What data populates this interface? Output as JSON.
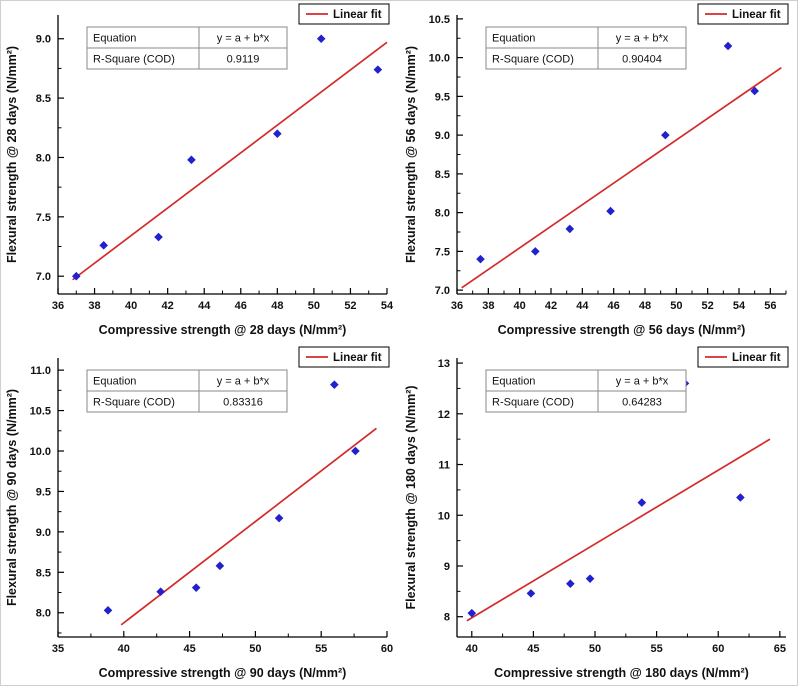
{
  "page": {
    "background": "#ffffff"
  },
  "chart_data": [
    {
      "type": "scatter",
      "title": "",
      "xlabel": "Compressive strength @ 28 days (N/mm²)",
      "ylabel": "Flexural strength @ 28 days (N/mm²)",
      "xlim": [
        36,
        54
      ],
      "ylim": [
        6.85,
        9.2
      ],
      "xtick_values": [
        36,
        38,
        40,
        42,
        44,
        46,
        48,
        50,
        52,
        54
      ],
      "xtick_labels": [
        "36",
        "38",
        "40",
        "42",
        "44",
        "46",
        "48",
        "50",
        "52",
        "54"
      ],
      "ytick_values": [
        7.0,
        7.5,
        8.0,
        8.5,
        9.0
      ],
      "ytick_labels": [
        "7.0",
        "7.5",
        "8.0",
        "8.5",
        "9.0"
      ],
      "points": [
        [
          37,
          7.0
        ],
        [
          38.5,
          7.26
        ],
        [
          41.5,
          7.33
        ],
        [
          43.3,
          7.98
        ],
        [
          48,
          8.2
        ],
        [
          50.4,
          9.0
        ],
        [
          53.5,
          8.74
        ]
      ],
      "fit_line": [
        [
          36.8,
          6.97
        ],
        [
          54.0,
          8.97
        ]
      ],
      "legend": "Linear fit",
      "legend_position": "top-right",
      "grid": false,
      "table": {
        "rows": [
          [
            "Equation",
            "y = a + b*x"
          ],
          [
            "R-Square (COD)",
            "0.9119"
          ]
        ]
      },
      "colors": {
        "marker": "#2121cd",
        "line": "#d42a2a"
      }
    },
    {
      "type": "scatter",
      "title": "",
      "xlabel": "Compressive strength @ 56 days (N/mm²)",
      "ylabel": "Flexural strength @ 56 days (N/mm²)",
      "xlim": [
        36,
        57
      ],
      "ylim": [
        6.95,
        10.55
      ],
      "xtick_values": [
        36,
        38,
        40,
        42,
        44,
        46,
        48,
        50,
        52,
        54,
        56
      ],
      "xtick_labels": [
        "36",
        "38",
        "40",
        "42",
        "44",
        "46",
        "48",
        "50",
        "52",
        "54",
        "56"
      ],
      "ytick_values": [
        7.0,
        7.5,
        8.0,
        8.5,
        9.0,
        9.5,
        10.0,
        10.5
      ],
      "ytick_labels": [
        "7.0",
        "7.5",
        "8.0",
        "8.5",
        "9.0",
        "9.5",
        "10.0",
        "10.5"
      ],
      "points": [
        [
          37.5,
          7.4
        ],
        [
          41,
          7.5
        ],
        [
          43.2,
          7.79
        ],
        [
          45.8,
          8.02
        ],
        [
          49.3,
          9.0
        ],
        [
          53.3,
          10.15
        ],
        [
          55,
          9.57
        ]
      ],
      "fit_line": [
        [
          36.3,
          7.03
        ],
        [
          56.7,
          9.87
        ]
      ],
      "legend": "Linear fit",
      "legend_position": "top-right",
      "grid": false,
      "table": {
        "rows": [
          [
            "Equation",
            "y = a + b*x"
          ],
          [
            "R-Square (COD)",
            "0.90404"
          ]
        ]
      },
      "colors": {
        "marker": "#2121cd",
        "line": "#d42a2a"
      }
    },
    {
      "type": "scatter",
      "title": "",
      "xlabel": "Compressive strength @ 90 days (N/mm²)",
      "ylabel": "Flexural strength @ 90 days (N/mm²)",
      "xlim": [
        35,
        60
      ],
      "ylim": [
        7.7,
        11.15
      ],
      "xtick_values": [
        35,
        40,
        45,
        50,
        55,
        60
      ],
      "xtick_labels": [
        "35",
        "40",
        "45",
        "50",
        "55",
        "60"
      ],
      "ytick_values": [
        8.0,
        8.5,
        9.0,
        9.5,
        10.0,
        10.5,
        11.0
      ],
      "ytick_labels": [
        "8.0",
        "8.5",
        "9.0",
        "9.5",
        "10.0",
        "10.5",
        "11.0"
      ],
      "points": [
        [
          38.8,
          8.03
        ],
        [
          42.8,
          8.26
        ],
        [
          45.5,
          8.31
        ],
        [
          47.3,
          8.58
        ],
        [
          51.8,
          9.17
        ],
        [
          56,
          10.82
        ],
        [
          57.6,
          10.0
        ]
      ],
      "fit_line": [
        [
          39.8,
          7.85
        ],
        [
          59.2,
          10.28
        ]
      ],
      "legend": "Linear fit",
      "legend_position": "top-right",
      "grid": false,
      "table": {
        "rows": [
          [
            "Equation",
            "y = a + b*x"
          ],
          [
            "R-Square (COD)",
            "0.83316"
          ]
        ]
      },
      "colors": {
        "marker": "#2121cd",
        "line": "#d42a2a"
      }
    },
    {
      "type": "scatter",
      "title": "",
      "xlabel": "Compressive strength @ 180 days (N/mm²)",
      "ylabel": "Flexural strength @ 180 days (N/mm²)",
      "xlim": [
        38.8,
        65.5
      ],
      "ylim": [
        7.6,
        13.1
      ],
      "xtick_values": [
        40,
        45,
        50,
        55,
        60,
        65
      ],
      "xtick_labels": [
        "40",
        "45",
        "50",
        "55",
        "60",
        "65"
      ],
      "ytick_values": [
        8,
        9,
        10,
        11,
        12,
        13
      ],
      "ytick_labels": [
        "8",
        "9",
        "10",
        "11",
        "12",
        "13"
      ],
      "points": [
        [
          40,
          8.07
        ],
        [
          44.8,
          8.46
        ],
        [
          48,
          8.65
        ],
        [
          49.6,
          8.75
        ],
        [
          53.8,
          10.25
        ],
        [
          57.3,
          12.6
        ],
        [
          61.8,
          10.35
        ]
      ],
      "fit_line": [
        [
          39.6,
          7.92
        ],
        [
          64.2,
          11.5
        ]
      ],
      "legend": "Linear fit",
      "legend_position": "top-right",
      "grid": false,
      "table": {
        "rows": [
          [
            "Equation",
            "y = a + b*x"
          ],
          [
            "R-Square (COD)",
            "0.64283"
          ]
        ]
      },
      "colors": {
        "marker": "#2121cd",
        "line": "#d42a2a"
      }
    }
  ]
}
